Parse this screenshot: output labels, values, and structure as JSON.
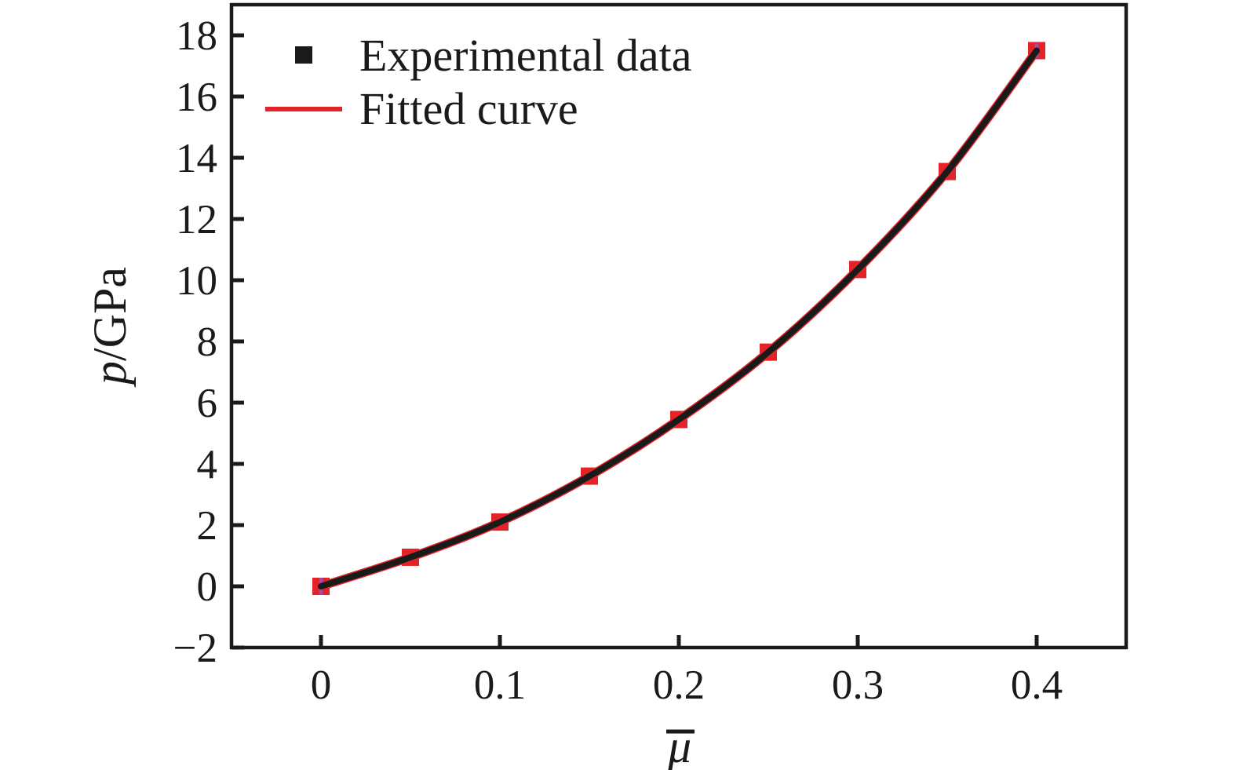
{
  "figure": {
    "background": "#ffffff",
    "frame_color": "#1a1a1a"
  },
  "legend": {
    "position": "upper-left-inside",
    "items": [
      {
        "label": "Experimental data",
        "swatch": "filled-square",
        "swatch_color": "#1a1a1a"
      },
      {
        "label": "Fitted curve",
        "swatch": "line",
        "swatch_color": "#e42328"
      }
    ]
  },
  "chart_data": {
    "type": "scatter",
    "title": "",
    "xlabel": "μ̄",
    "xlabel_base": "μ",
    "ylabel": "p/GPa",
    "ylabel_italic": "p",
    "ylabel_rest": "/GPa",
    "xlim": [
      -0.05,
      0.45
    ],
    "ylim": [
      -2,
      19
    ],
    "grid": false,
    "x_ticks": [
      0,
      0.1,
      0.2,
      0.3,
      0.4
    ],
    "x_tick_labels": [
      "0",
      "0.1",
      "0.2",
      "0.3",
      "0.4"
    ],
    "y_ticks": [
      -2,
      0,
      2,
      4,
      6,
      8,
      10,
      12,
      14,
      16,
      18
    ],
    "y_tick_labels": [
      "−2",
      "0",
      "2",
      "4",
      "6",
      "8",
      "10",
      "12",
      "14",
      "16",
      "18"
    ],
    "categories_x_shared": [
      0,
      0.05,
      0.1,
      0.15,
      0.2,
      0.25,
      0.3,
      0.35,
      0.4
    ],
    "series": [
      {
        "name": "Experimental data",
        "type": "scatter",
        "marker": "square",
        "marker_color": "#e42328",
        "legend_swatch_color": "#1a1a1a",
        "x": [
          0,
          0.05,
          0.1,
          0.15,
          0.2,
          0.25,
          0.3,
          0.35,
          0.4
        ],
        "y": [
          0,
          0.95,
          2.1,
          3.6,
          5.45,
          7.65,
          10.35,
          13.55,
          17.5
        ]
      },
      {
        "name": "Fitted curve",
        "type": "line",
        "line_color": "#e42328",
        "overlay_color": "#1a1a1a",
        "x": [
          0,
          0.05,
          0.1,
          0.15,
          0.2,
          0.25,
          0.3,
          0.35,
          0.4
        ],
        "y": [
          0,
          0.95,
          2.1,
          3.6,
          5.45,
          7.65,
          10.35,
          13.55,
          17.5
        ]
      }
    ],
    "aux_marks": [
      {
        "x": 0,
        "y": 0,
        "color": "#9c4fae",
        "half_height_gpa": 0.28
      },
      {
        "x": 0.4,
        "y": 17.5,
        "color": "#9c4fae",
        "half_height_gpa": 0.23
      }
    ]
  }
}
